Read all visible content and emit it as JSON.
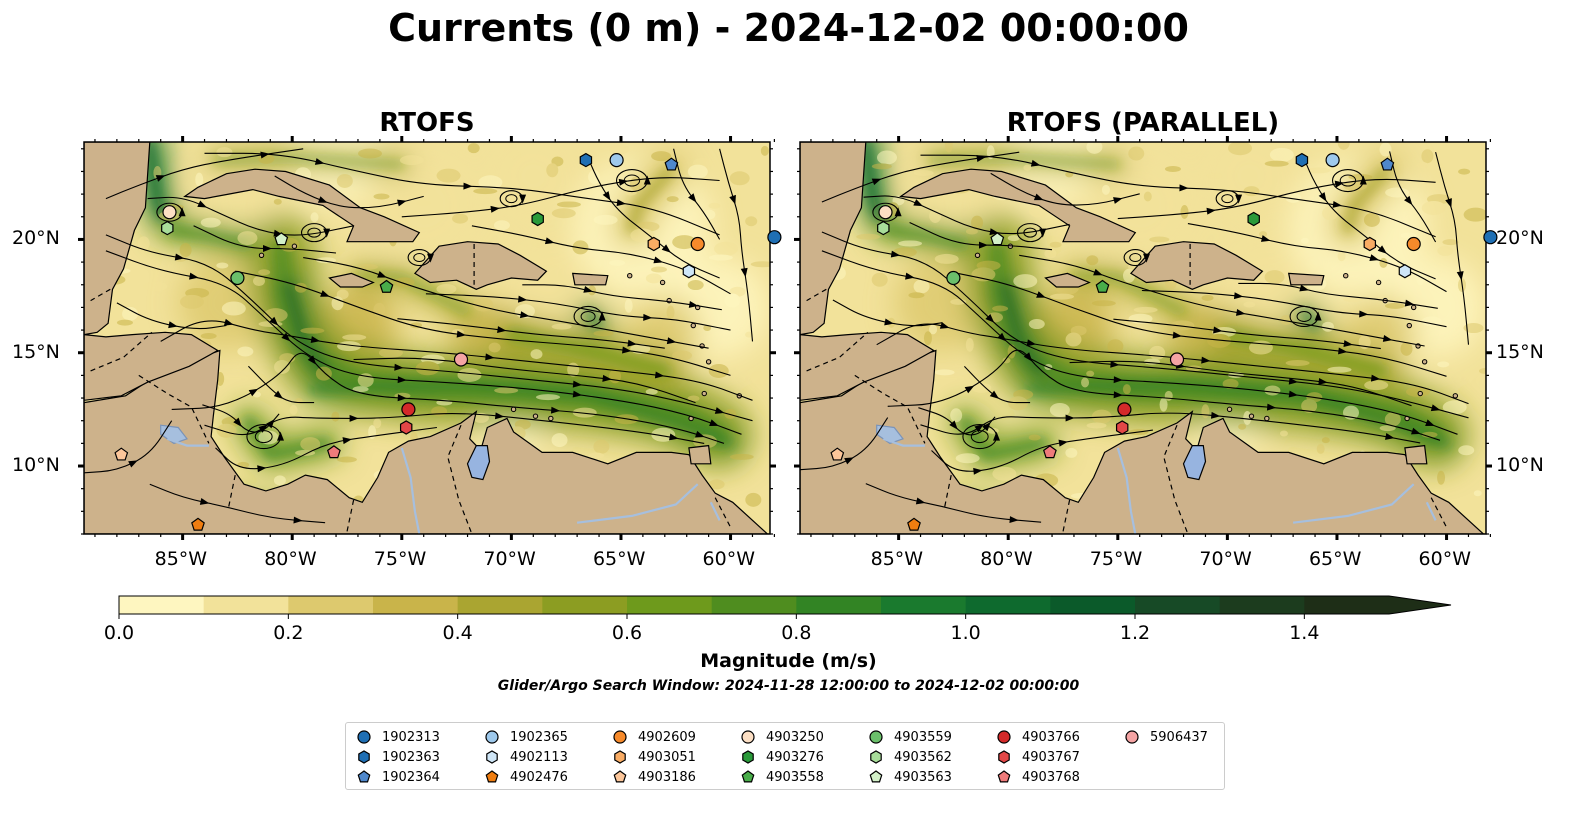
{
  "title": "Currents (0 m) - 2024-12-02 00:00:00",
  "panels": [
    {
      "title": "RTOFS"
    },
    {
      "title": "RTOFS (PARALLEL)"
    }
  ],
  "axes": {
    "lon_ticks": [
      "85°W",
      "80°W",
      "75°W",
      "70°W",
      "65°W",
      "60°W"
    ],
    "lat_ticks": [
      "20°N",
      "15°N",
      "10°N"
    ]
  },
  "colorbar": {
    "label": "Magnitude (m/s)",
    "ticks": [
      "0.0",
      "0.2",
      "0.4",
      "0.6",
      "0.8",
      "1.0",
      "1.2",
      "1.4"
    ],
    "colors": [
      "#fef6c0",
      "#f2e29a",
      "#ddc96e",
      "#c9b44a",
      "#aaa531",
      "#8c9d22",
      "#6e9a1c",
      "#4f8d1f",
      "#328424",
      "#1a7a2e",
      "#0e6a2e",
      "#0b5a2a",
      "#174a26",
      "#1c3c1e",
      "#1e2e17"
    ]
  },
  "subtitle": "Glider/Argo Search Window: 2024-11-28 12:00:00 to 2024-12-02 00:00:00",
  "colors": {
    "land": "#cdb28b",
    "water": "#97b4e0",
    "river": "#a6bfde"
  },
  "legend": [
    {
      "id": "1902313",
      "marker": "circle",
      "color": "#1f6fb4"
    },
    {
      "id": "1902363",
      "marker": "hexagon",
      "color": "#1f6fb4"
    },
    {
      "id": "1902364",
      "marker": "pentagon",
      "color": "#4f88cc"
    },
    {
      "id": "1902365",
      "marker": "circle",
      "color": "#9ec9ec"
    },
    {
      "id": "4902113",
      "marker": "hexagon",
      "color": "#cfe6f7"
    },
    {
      "id": "4902476",
      "marker": "pentagon",
      "color": "#ef7d10"
    },
    {
      "id": "4902609",
      "marker": "circle",
      "color": "#f68a2b"
    },
    {
      "id": "4903051",
      "marker": "hexagon",
      "color": "#f9ac64"
    },
    {
      "id": "4903186",
      "marker": "pentagon",
      "color": "#fcc69a"
    },
    {
      "id": "4903250",
      "marker": "circle",
      "color": "#fcdfc4"
    },
    {
      "id": "4903276",
      "marker": "hexagon",
      "color": "#2a9a3a"
    },
    {
      "id": "4903558",
      "marker": "pentagon",
      "color": "#49ad4a"
    },
    {
      "id": "4903559",
      "marker": "circle",
      "color": "#6bc06b"
    },
    {
      "id": "4903562",
      "marker": "hexagon",
      "color": "#a8dd9a"
    },
    {
      "id": "4903563",
      "marker": "pentagon",
      "color": "#d3f0c8"
    },
    {
      "id": "4903766",
      "marker": "circle",
      "color": "#d42a2a"
    },
    {
      "id": "4903767",
      "marker": "hexagon",
      "color": "#e24747"
    },
    {
      "id": "4903768",
      "marker": "pentagon",
      "color": "#ee7b7b"
    },
    {
      "id": "5906437",
      "marker": "circle",
      "color": "#f5a4a4"
    }
  ],
  "floats": [
    {
      "id": "1902313",
      "lon": -58.0,
      "lat": 20.1
    },
    {
      "id": "1902363",
      "lon": -66.6,
      "lat": 23.5
    },
    {
      "id": "1902364",
      "lon": -62.7,
      "lat": 23.3
    },
    {
      "id": "1902365",
      "lon": -65.2,
      "lat": 23.5
    },
    {
      "id": "4902113",
      "lon": -61.9,
      "lat": 18.6
    },
    {
      "id": "4902476",
      "lon": -84.3,
      "lat": 7.4
    },
    {
      "id": "4902609",
      "lon": -61.5,
      "lat": 19.8
    },
    {
      "id": "4903051",
      "lon": -63.5,
      "lat": 19.8
    },
    {
      "id": "4903186",
      "lon": -87.8,
      "lat": 10.5
    },
    {
      "id": "4903250",
      "lon": -85.6,
      "lat": 21.2
    },
    {
      "id": "4903276",
      "lon": -68.8,
      "lat": 20.9
    },
    {
      "id": "4903558",
      "lon": -75.7,
      "lat": 17.9
    },
    {
      "id": "4903559",
      "lon": -82.5,
      "lat": 18.3
    },
    {
      "id": "4903562",
      "lon": -85.7,
      "lat": 20.5
    },
    {
      "id": "4903563",
      "lon": -80.5,
      "lat": 20.0
    },
    {
      "id": "4903766",
      "lon": -74.7,
      "lat": 12.5
    },
    {
      "id": "4903767",
      "lon": -74.8,
      "lat": 11.7
    },
    {
      "id": "4903768",
      "lon": -78.1,
      "lat": 10.6
    },
    {
      "id": "5906437",
      "lon": -72.3,
      "lat": 14.7
    }
  ]
}
